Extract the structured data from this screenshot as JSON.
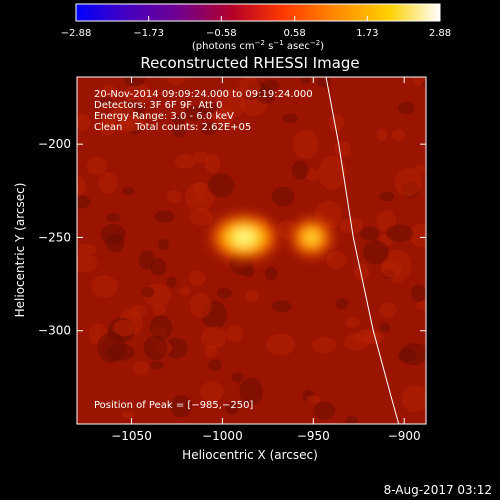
{
  "chart_data": {
    "type": "heatmap",
    "title": "Reconstructed RHESSI Image",
    "xlabel": "Heliocentric X (arcsec)",
    "ylabel": "Heliocentric Y (arcsec)",
    "xlim": [
      -1080,
      -888
    ],
    "ylim": [
      -350,
      -164
    ],
    "x_ticks": [
      -1050,
      -1000,
      -950,
      -900
    ],
    "x_tick_labels": [
      "−1050",
      "−1000",
      "−950",
      "−900"
    ],
    "y_ticks": [
      -200,
      -250,
      -300
    ],
    "y_tick_labels": [
      "−200",
      "−250",
      "−300"
    ],
    "colorbar": {
      "range": [
        -2.88,
        2.88
      ],
      "ticks": [
        -2.88,
        -1.73,
        -0.58,
        0.58,
        1.73,
        2.88
      ],
      "tick_labels": [
        "−2.88",
        "−1.73",
        "−0.58",
        "0.58",
        "1.73",
        "2.88"
      ],
      "label_main": "(photons cm",
      "label_exp1": "−2",
      "label_mid": " s",
      "label_exp2": "−1",
      "label_mid2": " asec",
      "label_exp3": "−2",
      "label_end": ")",
      "colors": [
        "#0000ff",
        "#4400c0",
        "#700090",
        "#b40028",
        "#ff3a00",
        "#ff8800",
        "#ffd000",
        "#ffffff"
      ]
    },
    "sources": [
      {
        "x": -988,
        "y": -250,
        "intensity": 1.0
      },
      {
        "x": -951,
        "y": -250,
        "intensity": 0.82
      }
    ],
    "background_level": 0.58,
    "limb_curve": [
      {
        "x": -943,
        "y": -164
      },
      {
        "x": -936,
        "y": -200
      },
      {
        "x": -928,
        "y": -250
      },
      {
        "x": -917,
        "y": -300
      },
      {
        "x": -907,
        "y": -336
      },
      {
        "x": -903,
        "y": -350
      }
    ],
    "annotations": [
      "20-Nov-2014 09:09:24.000 to 09:19:24.000",
      "Detectors: 3F 6F 9F, Att 0",
      "Energy Range: 3.0 - 6.0 keV",
      "Clean    Total counts: 2.62E+05"
    ],
    "peak_label": "Position of Peak = [−985,−250]"
  },
  "date_stamp": "8-Aug-2017 03:12"
}
